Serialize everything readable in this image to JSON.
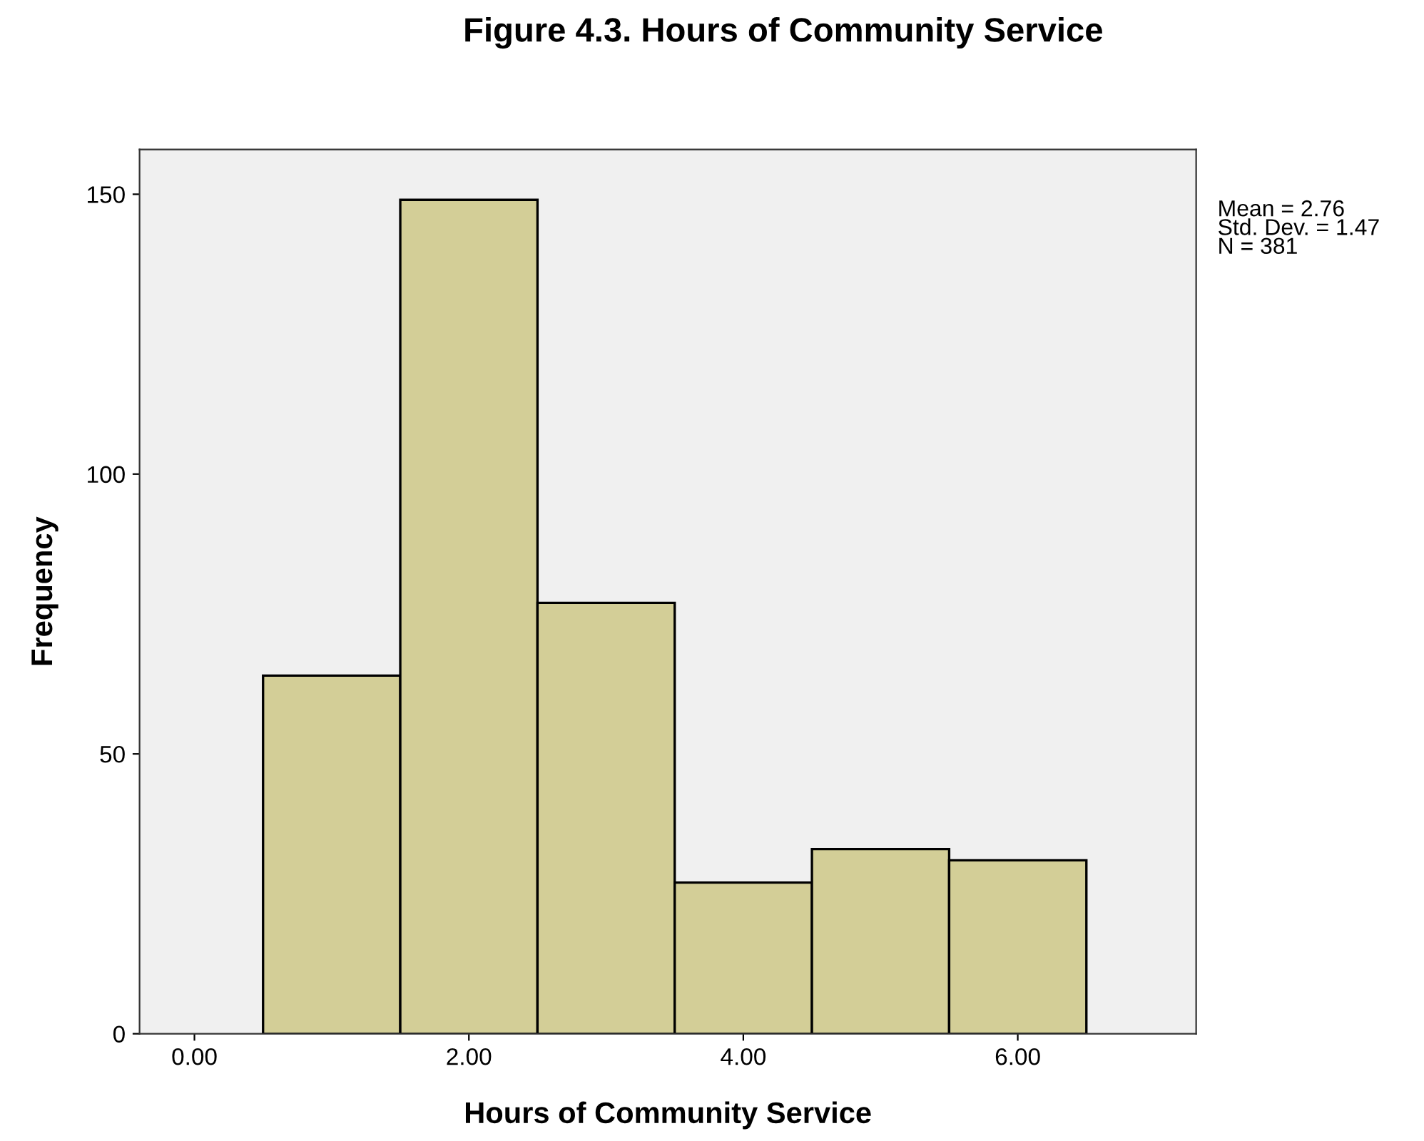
{
  "chart_data": {
    "type": "histogram",
    "title": "Figure 4.3. Hours of Community Service",
    "xlabel": "Hours of Community Service",
    "ylabel": "Frequency",
    "bins": [
      0.5,
      1.5,
      2.5,
      3.5,
      4.5,
      5.5,
      6.5
    ],
    "values": [
      64,
      149,
      77,
      27,
      33,
      31
    ],
    "color": "#d3ce97",
    "xlim": [
      -0.4,
      7.3
    ],
    "xticks": [
      {
        "value": 0,
        "label": "0.00"
      },
      {
        "value": 2,
        "label": "2.00"
      },
      {
        "value": 4,
        "label": "4.00"
      },
      {
        "value": 6,
        "label": "6.00"
      }
    ],
    "ylim": [
      0,
      158
    ],
    "yticks": [
      0,
      50,
      100,
      150
    ],
    "grid": false,
    "annotations": [
      "Mean = 2.76\nStd. Dev. = 1.47\nN = 381"
    ]
  }
}
